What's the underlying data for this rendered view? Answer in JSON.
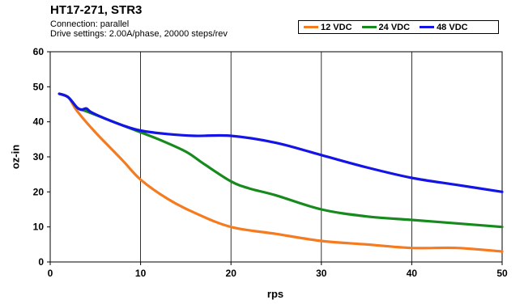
{
  "header": {
    "title": "HT17-271, STR3",
    "subtitle_line1": "Connection: parallel",
    "subtitle_line2": "Drive settings: 2.00A/phase, 20000 steps/rev"
  },
  "chart_data": {
    "type": "line",
    "title": "HT17-271, STR3",
    "subtitle": "Connection: parallel / Drive settings: 2.00A/phase, 20000 steps/rev",
    "xlabel": "rps",
    "ylabel": "oz-in",
    "xlim": [
      0,
      50
    ],
    "ylim": [
      0,
      60
    ],
    "xticks": [
      0,
      10,
      20,
      30,
      40,
      50
    ],
    "yticks": [
      0,
      10,
      20,
      30,
      40,
      50,
      60
    ],
    "grid": "vertical",
    "legend_placement": "top-right",
    "series": [
      {
        "name": "12 VDC",
        "color": "#f47b20",
        "points": [
          [
            1,
            48
          ],
          [
            2,
            47
          ],
          [
            3,
            43
          ],
          [
            5,
            37
          ],
          [
            8,
            29
          ],
          [
            10,
            23.5
          ],
          [
            13,
            18
          ],
          [
            16,
            14
          ],
          [
            20,
            10
          ],
          [
            25,
            8
          ],
          [
            30,
            6
          ],
          [
            35,
            5
          ],
          [
            40,
            4
          ],
          [
            45,
            4
          ],
          [
            50,
            3
          ]
        ]
      },
      {
        "name": "24 VDC",
        "color": "#168a1c",
        "points": [
          [
            1,
            48
          ],
          [
            2,
            47
          ],
          [
            3,
            44
          ],
          [
            4,
            43
          ],
          [
            6,
            41
          ],
          [
            8,
            39
          ],
          [
            10,
            37
          ],
          [
            12,
            35
          ],
          [
            15,
            31.5
          ],
          [
            17,
            28
          ],
          [
            20,
            23
          ],
          [
            22,
            21
          ],
          [
            25,
            19
          ],
          [
            30,
            15
          ],
          [
            35,
            13
          ],
          [
            40,
            12
          ],
          [
            45,
            11
          ],
          [
            50,
            10
          ]
        ]
      },
      {
        "name": "48 VDC",
        "color": "#1414e6",
        "points": [
          [
            1,
            48
          ],
          [
            2,
            47
          ],
          [
            3,
            44
          ],
          [
            3.5,
            43.5
          ],
          [
            4,
            43.8
          ],
          [
            4.5,
            42.8
          ],
          [
            6,
            41
          ],
          [
            8,
            39
          ],
          [
            10,
            37.5
          ],
          [
            13,
            36.5
          ],
          [
            16,
            36
          ],
          [
            20,
            36
          ],
          [
            25,
            34
          ],
          [
            30,
            30.5
          ],
          [
            35,
            27
          ],
          [
            40,
            24
          ],
          [
            45,
            22
          ],
          [
            50,
            20
          ]
        ]
      }
    ]
  }
}
